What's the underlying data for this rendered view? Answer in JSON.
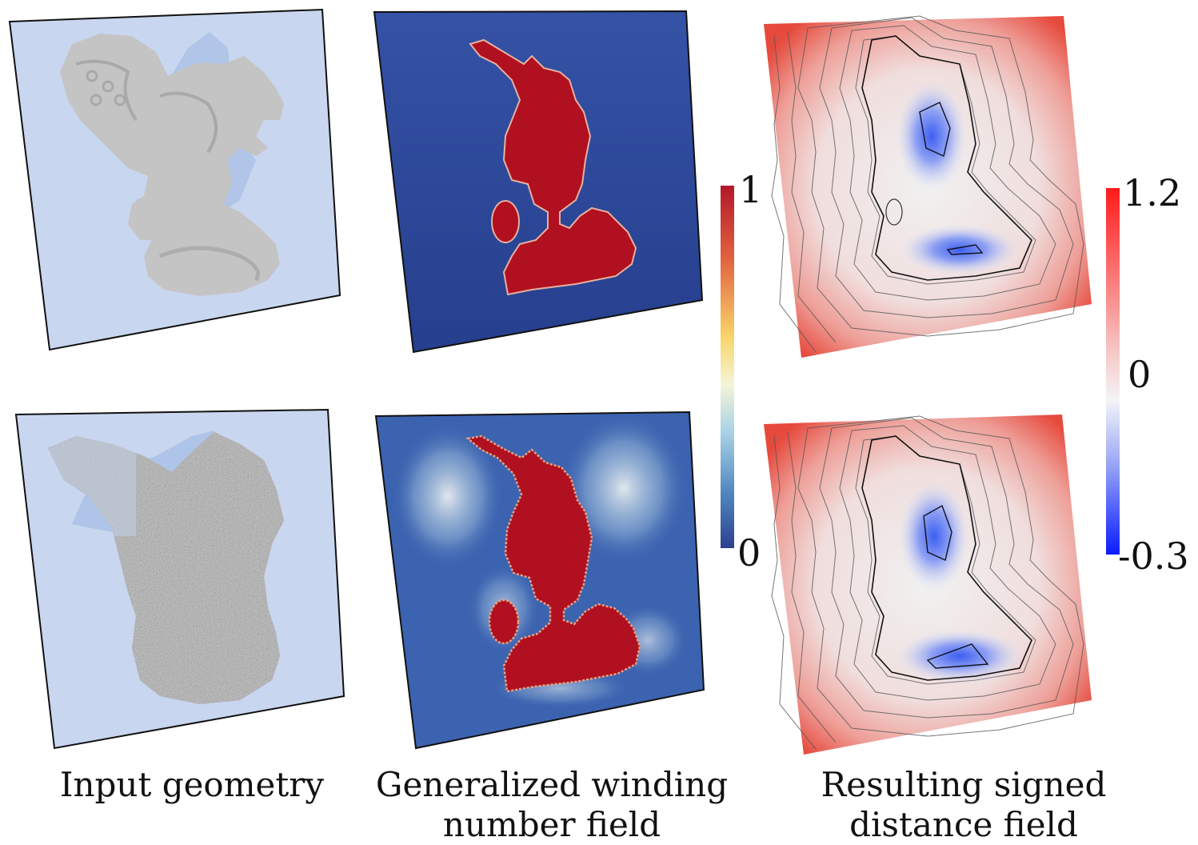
{
  "figure": {
    "columns": [
      {
        "caption": "Input geometry"
      },
      {
        "caption_line1": "Generalized winding",
        "caption_line2": "number field"
      },
      {
        "caption_line1": "Resulting signed",
        "caption_line2": "distance field"
      }
    ],
    "rows": [
      "mesh input",
      "point cloud input"
    ]
  },
  "colorbars": {
    "winding": {
      "max_label": "1",
      "min_label": "0"
    },
    "distance": {
      "max_label": "1.2",
      "mid_label": "0",
      "min_label": "-0.3"
    }
  },
  "colors": {
    "plane_input": "#c8d6ef",
    "winding_outside": "#2f4f9f",
    "winding_inside": "#b30f24",
    "sdf_positive": "#e8382e",
    "sdf_zero": "#f2f2f2",
    "sdf_negative": "#3d5df0",
    "mesh_gray": "#c4c4c4"
  }
}
